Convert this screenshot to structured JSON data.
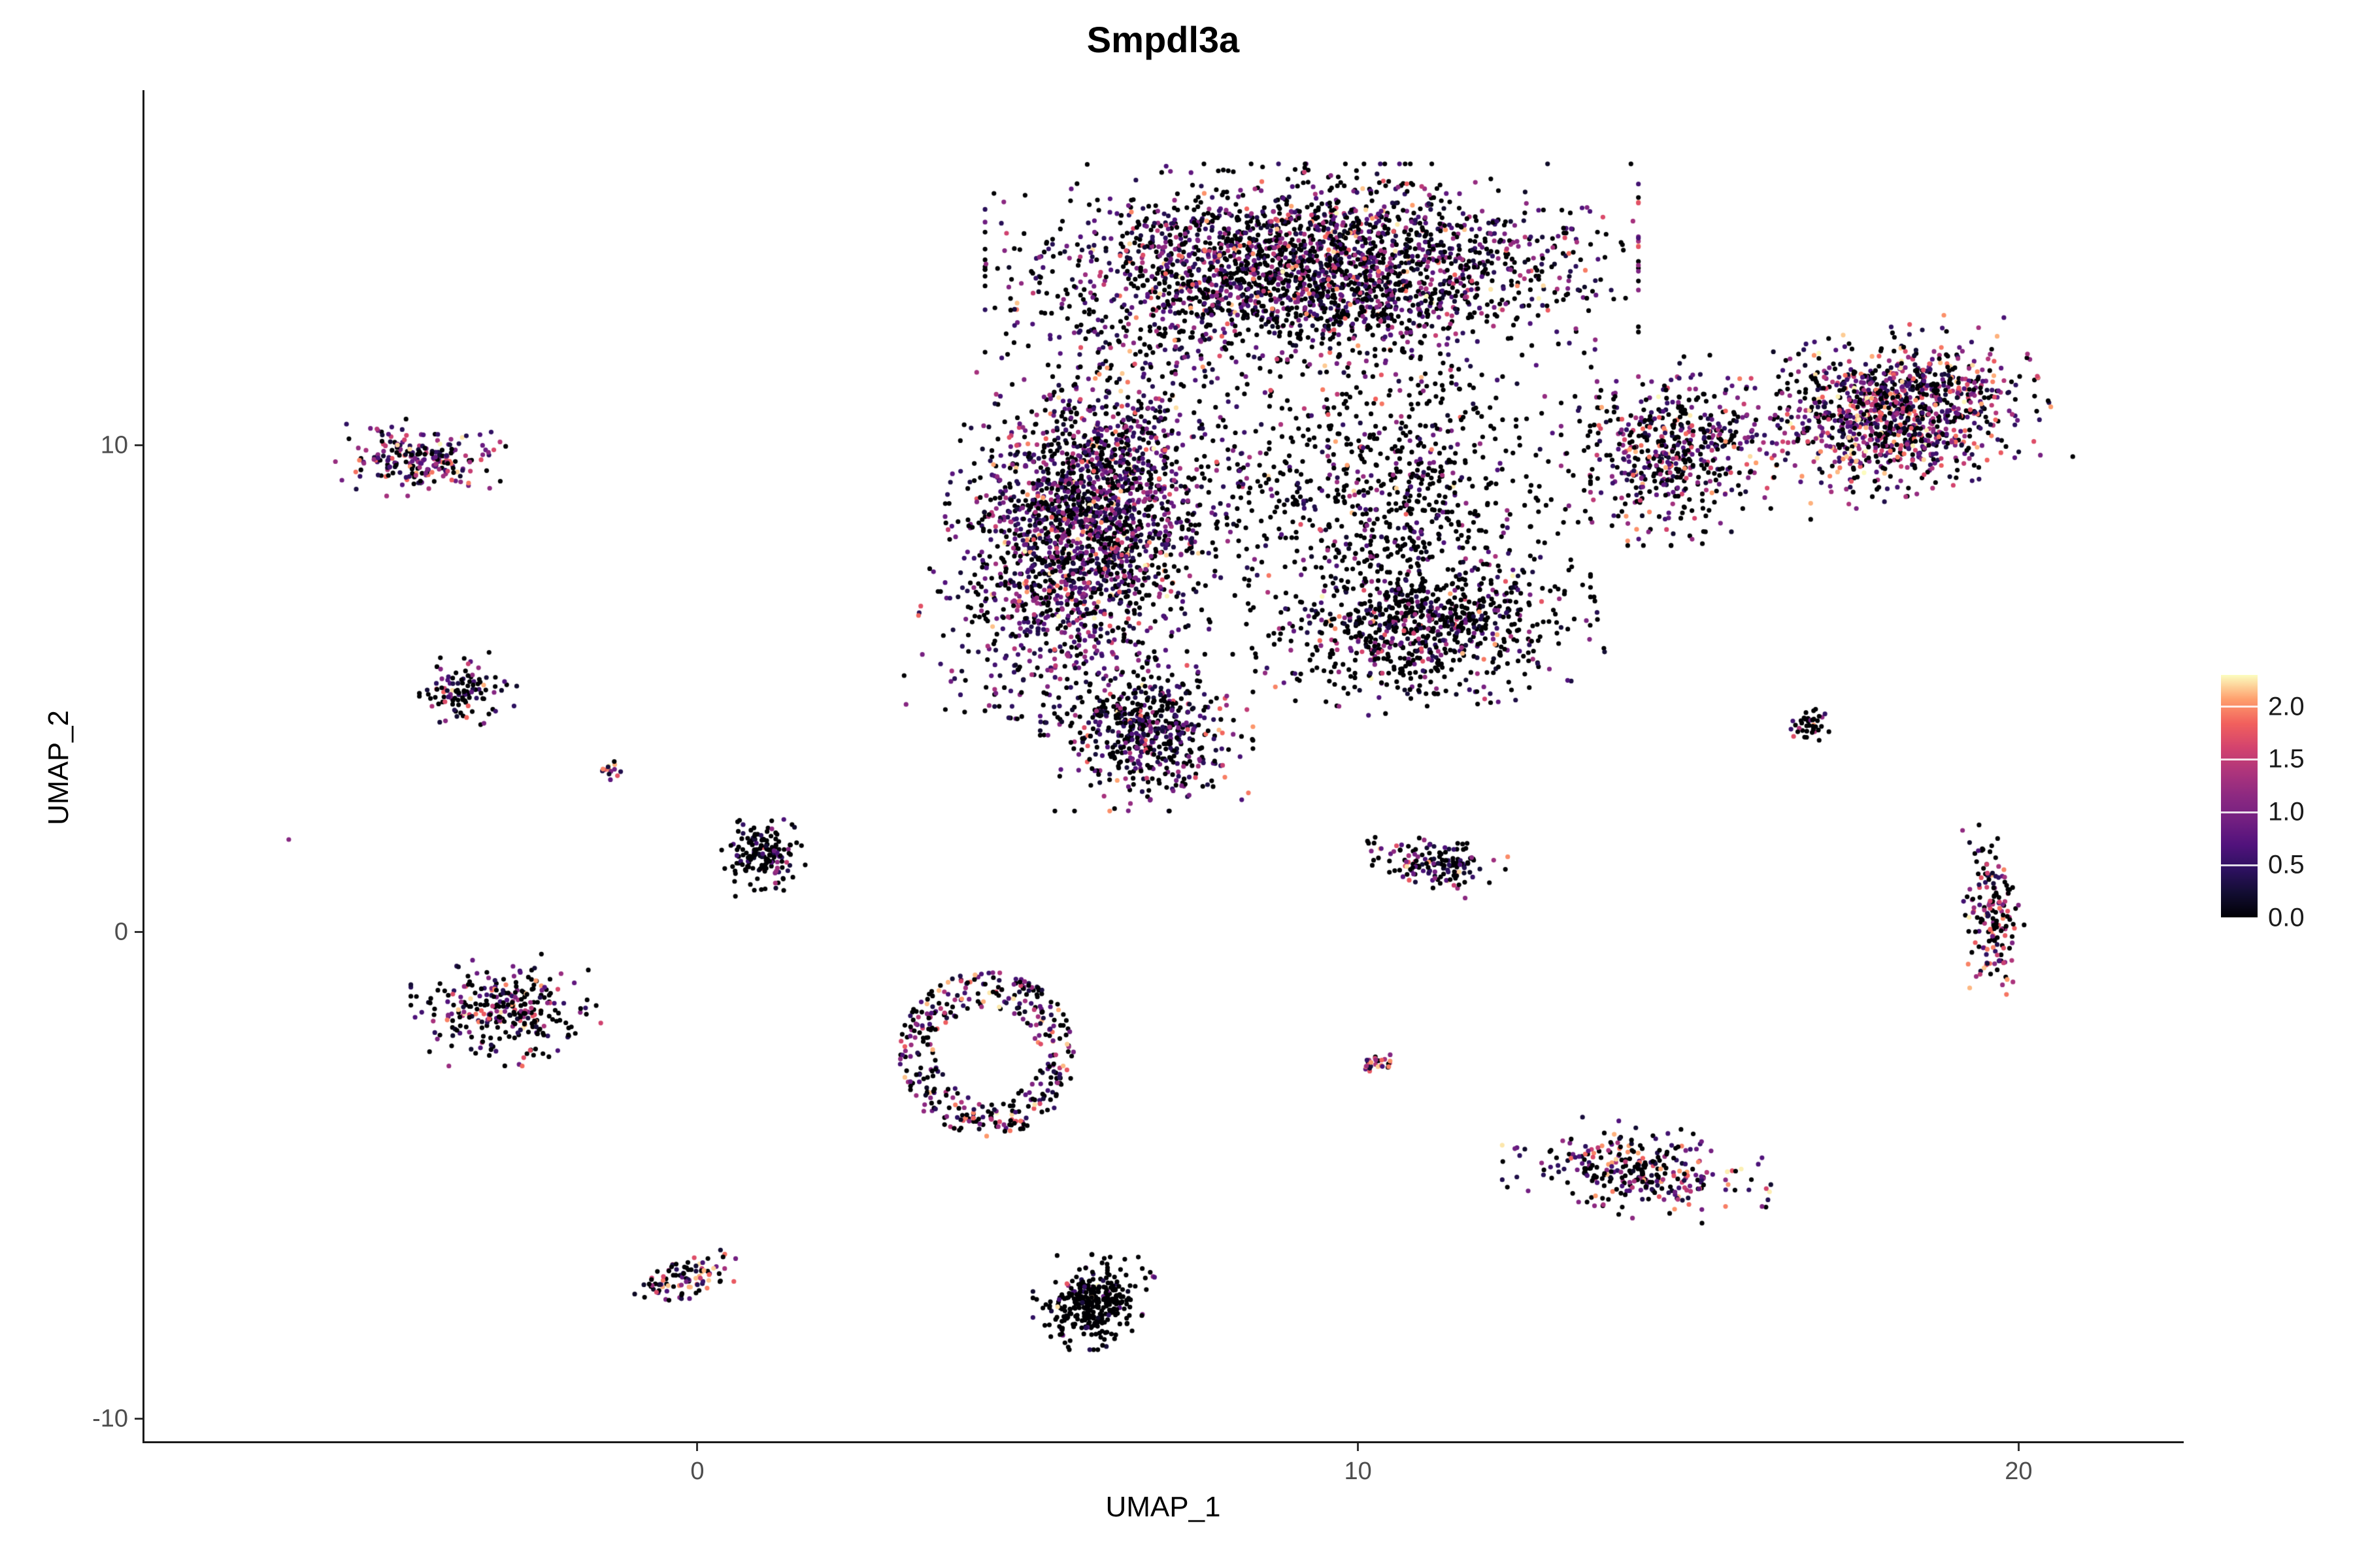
{
  "chart": {
    "title": "Smpdl3a",
    "xlabel": "UMAP_1",
    "ylabel": "UMAP_2"
  },
  "chart_data": {
    "type": "scatter",
    "title": "Smpdl3a",
    "subtitle": "",
    "xlabel": "UMAP_1",
    "ylabel": "UMAP_2",
    "xlim": [
      -8.4,
      22.5
    ],
    "ylim": [
      -10.5,
      17.3
    ],
    "x_ticks": [
      0,
      10,
      20
    ],
    "x_tick_labels": [
      "0",
      "10",
      "20"
    ],
    "y_ticks": [
      10,
      0,
      -10
    ],
    "y_tick_labels": [
      "10",
      "0",
      "-10"
    ],
    "grid": false,
    "point_radius_px": 3.6,
    "legend": {
      "position": "right",
      "tick_values": [
        2.0,
        1.5,
        1.0,
        0.5,
        0.0
      ],
      "tick_labels": [
        "2.0",
        "1.5",
        "1.0",
        "0.5",
        "0.0"
      ],
      "vmin": 0.0,
      "vmax": 2.3,
      "colormap": "magma",
      "colormap_stops": [
        {
          "t": 0.0,
          "c": "#000004"
        },
        {
          "t": 0.1,
          "c": "#120D31"
        },
        {
          "t": 0.2,
          "c": "#2D1160"
        },
        {
          "t": 0.3,
          "c": "#51127C"
        },
        {
          "t": 0.4,
          "c": "#721F81"
        },
        {
          "t": 0.5,
          "c": "#8C2981"
        },
        {
          "t": 0.6,
          "c": "#AD347C"
        },
        {
          "t": 0.7,
          "c": "#D3436E"
        },
        {
          "t": 0.8,
          "c": "#F1605D"
        },
        {
          "t": 0.9,
          "c": "#FE9F6D"
        },
        {
          "t": 1.0,
          "c": "#FCFDBF"
        }
      ]
    },
    "expression_bins": {
      "zero": [
        0.0,
        0.0
      ],
      "low": [
        0.15,
        0.7
      ],
      "mid": [
        0.7,
        1.4
      ],
      "high": [
        1.4,
        2.3
      ]
    },
    "random_seed": 42,
    "clusters": [
      {
        "name": "main-top-arc",
        "cx": 9.3,
        "cy": 13.6,
        "rx": 4.3,
        "ry": 1.9,
        "rot": 0,
        "n": 2600,
        "expr": {
          "zero": 0.5,
          "low": 0.22,
          "mid": 0.2,
          "high": 0.08
        }
      },
      {
        "name": "main-left-lobe",
        "cx": 5.9,
        "cy": 8.4,
        "rx": 1.9,
        "ry": 3.6,
        "rot": -10,
        "n": 2300,
        "expr": {
          "zero": 0.42,
          "low": 0.26,
          "mid": 0.24,
          "high": 0.08
        }
      },
      {
        "name": "main-bottom-tail",
        "cx": 6.8,
        "cy": 4.1,
        "rx": 1.4,
        "ry": 1.4,
        "rot": 0,
        "n": 550,
        "expr": {
          "zero": 0.5,
          "low": 0.24,
          "mid": 0.19,
          "high": 0.07
        }
      },
      {
        "name": "main-center-sparse",
        "cx": 10.3,
        "cy": 9.0,
        "rx": 2.8,
        "ry": 3.2,
        "rot": 0,
        "n": 900,
        "expr": {
          "zero": 0.72,
          "low": 0.14,
          "mid": 0.11,
          "high": 0.03
        }
      },
      {
        "name": "main-lower-right",
        "cx": 11.0,
        "cy": 6.2,
        "rx": 2.3,
        "ry": 1.4,
        "rot": 8,
        "n": 750,
        "expr": {
          "zero": 0.66,
          "low": 0.16,
          "mid": 0.14,
          "high": 0.04
        }
      },
      {
        "name": "main-right-bridge",
        "cx": 14.8,
        "cy": 9.9,
        "rx": 1.5,
        "ry": 1.7,
        "rot": 0,
        "n": 520,
        "expr": {
          "zero": 0.46,
          "low": 0.2,
          "mid": 0.2,
          "high": 0.14
        }
      },
      {
        "name": "right-arm",
        "cx": 18.1,
        "cy": 10.7,
        "rx": 2.0,
        "ry": 1.5,
        "rot": 18,
        "n": 1150,
        "expr": {
          "zero": 0.34,
          "low": 0.2,
          "mid": 0.26,
          "high": 0.2
        }
      },
      {
        "name": "upper-left-island",
        "cx": -4.2,
        "cy": 9.7,
        "rx": 1.1,
        "ry": 0.7,
        "rot": -8,
        "n": 220,
        "expr": {
          "zero": 0.32,
          "low": 0.23,
          "mid": 0.27,
          "high": 0.18
        }
      },
      {
        "name": "left-small-island",
        "cx": -3.5,
        "cy": 5.0,
        "rx": 0.6,
        "ry": 0.65,
        "rot": 30,
        "n": 110,
        "expr": {
          "zero": 0.58,
          "low": 0.2,
          "mid": 0.13,
          "high": 0.09
        }
      },
      {
        "name": "tiny-orange-island",
        "cx": -1.3,
        "cy": 3.3,
        "rx": 0.18,
        "ry": 0.18,
        "rot": 0,
        "n": 14,
        "expr": {
          "zero": 0.08,
          "low": 0.12,
          "mid": 0.3,
          "high": 0.5
        }
      },
      {
        "name": "lone-point",
        "cx": -6.2,
        "cy": 1.9,
        "rx": 0.03,
        "ry": 0.03,
        "rot": 0,
        "n": 1,
        "expr": {
          "zero": 0.0,
          "low": 0.0,
          "mid": 1.0,
          "high": 0.0
        }
      },
      {
        "name": "small-center-left-island",
        "cx": 1.0,
        "cy": 1.6,
        "rx": 0.55,
        "ry": 0.75,
        "rot": 0,
        "n": 160,
        "expr": {
          "zero": 0.74,
          "low": 0.15,
          "mid": 0.08,
          "high": 0.03
        }
      },
      {
        "name": "left-mid-island",
        "cx": -2.9,
        "cy": -1.6,
        "rx": 1.25,
        "ry": 1.0,
        "rot": 0,
        "n": 300,
        "expr": {
          "zero": 0.58,
          "low": 0.15,
          "mid": 0.14,
          "high": 0.13
        }
      },
      {
        "name": "ring-island",
        "cx": 4.4,
        "cy": -2.5,
        "rx": 1.35,
        "ry": 1.7,
        "rot": 0,
        "ring": 0.55,
        "n": 380,
        "expr": {
          "zero": 0.44,
          "low": 0.2,
          "mid": 0.2,
          "high": 0.16
        }
      },
      {
        "name": "mid-small-island",
        "cx": 11.2,
        "cy": 1.4,
        "rx": 1.05,
        "ry": 0.5,
        "rot": -14,
        "n": 150,
        "expr": {
          "zero": 0.52,
          "low": 0.2,
          "mid": 0.17,
          "high": 0.11
        }
      },
      {
        "name": "tiny-streak-island",
        "cx": 10.3,
        "cy": -2.7,
        "rx": 0.3,
        "ry": 0.14,
        "rot": 25,
        "n": 28,
        "expr": {
          "zero": 0.12,
          "low": 0.16,
          "mid": 0.32,
          "high": 0.4
        }
      },
      {
        "name": "lower-right-long-island",
        "cx": 14.2,
        "cy": -4.9,
        "rx": 1.8,
        "ry": 0.85,
        "rot": -8,
        "n": 300,
        "expr": {
          "zero": 0.44,
          "low": 0.2,
          "mid": 0.2,
          "high": 0.16
        }
      },
      {
        "name": "bottom-dense-island",
        "cx": 6.0,
        "cy": -7.6,
        "rx": 0.8,
        "ry": 0.85,
        "rot": 0,
        "n": 330,
        "expr": {
          "zero": 0.86,
          "low": 0.09,
          "mid": 0.04,
          "high": 0.01
        }
      },
      {
        "name": "bottom-left-island",
        "cx": -0.15,
        "cy": -7.1,
        "rx": 0.75,
        "ry": 0.45,
        "rot": 28,
        "n": 95,
        "expr": {
          "zero": 0.38,
          "low": 0.2,
          "mid": 0.2,
          "high": 0.22
        }
      },
      {
        "name": "tiny-right-upper-island",
        "cx": 16.8,
        "cy": 4.3,
        "rx": 0.32,
        "ry": 0.3,
        "rot": -40,
        "n": 40,
        "expr": {
          "zero": 0.72,
          "low": 0.1,
          "mid": 0.1,
          "high": 0.08
        }
      },
      {
        "name": "right-column-island",
        "cx": 19.6,
        "cy": 0.4,
        "rx": 0.42,
        "ry": 1.65,
        "rot": 5,
        "n": 170,
        "expr": {
          "zero": 0.4,
          "low": 0.2,
          "mid": 0.2,
          "high": 0.2
        }
      }
    ]
  }
}
